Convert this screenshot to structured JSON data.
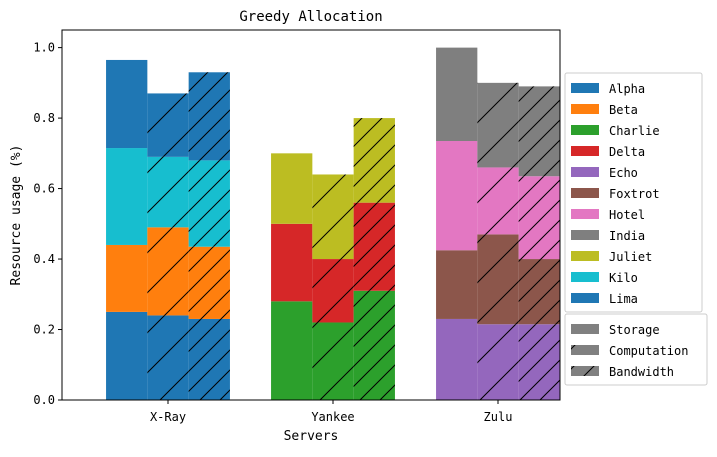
{
  "chart_data": {
    "type": "bar",
    "title": "Greedy Allocation",
    "xlabel": "Servers",
    "ylabel": "Resource usage (%)",
    "ylim": [
      0,
      1.05
    ],
    "yticks": [
      "0.0",
      "0.2",
      "0.4",
      "0.6",
      "0.8",
      "1.0"
    ],
    "categories": [
      "X-Ray",
      "Yankee",
      "Zulu"
    ],
    "resources": [
      "Storage",
      "Computation",
      "Bandwidth"
    ],
    "colors": {
      "Alpha": "#1f77b4",
      "Beta": "#ff7f0e",
      "Charlie": "#2ca02c",
      "Delta": "#d62728",
      "Echo": "#9467bd",
      "Foxtrot": "#8c564b",
      "Hotel": "#e377c2",
      "India": "#7f7f7f",
      "Juliet": "#bcbd22",
      "Kilo": "#17becf",
      "Lima": "#1f77b4"
    },
    "legend_series": [
      "Alpha",
      "Beta",
      "Charlie",
      "Delta",
      "Echo",
      "Foxtrot",
      "Hotel",
      "India",
      "Juliet",
      "Kilo",
      "Lima"
    ],
    "legend_series_placement": "center-right",
    "legend_resources": [
      "Storage",
      "Computation",
      "Bandwidth"
    ],
    "legend_resources_placement": "lower-right",
    "grid": false,
    "stacks": [
      {
        "category": "X-Ray",
        "bars": [
          {
            "resource": "Storage",
            "segments": [
              {
                "series": "Alpha",
                "value": 0.25
              },
              {
                "series": "Beta",
                "value": 0.19
              },
              {
                "series": "Kilo",
                "value": 0.275
              },
              {
                "series": "Lima",
                "value": 0.25
              }
            ]
          },
          {
            "resource": "Computation",
            "segments": [
              {
                "series": "Alpha",
                "value": 0.24
              },
              {
                "series": "Beta",
                "value": 0.25
              },
              {
                "series": "Kilo",
                "value": 0.2
              },
              {
                "series": "Lima",
                "value": 0.18
              }
            ]
          },
          {
            "resource": "Bandwidth",
            "segments": [
              {
                "series": "Alpha",
                "value": 0.23
              },
              {
                "series": "Beta",
                "value": 0.205
              },
              {
                "series": "Kilo",
                "value": 0.245
              },
              {
                "series": "Lima",
                "value": 0.25
              }
            ]
          }
        ]
      },
      {
        "category": "Yankee",
        "bars": [
          {
            "resource": "Storage",
            "segments": [
              {
                "series": "Charlie",
                "value": 0.28
              },
              {
                "series": "Delta",
                "value": 0.22
              },
              {
                "series": "Juliet",
                "value": 0.2
              }
            ]
          },
          {
            "resource": "Computation",
            "segments": [
              {
                "series": "Charlie",
                "value": 0.22
              },
              {
                "series": "Delta",
                "value": 0.18
              },
              {
                "series": "Juliet",
                "value": 0.24
              }
            ]
          },
          {
            "resource": "Bandwidth",
            "segments": [
              {
                "series": "Charlie",
                "value": 0.31
              },
              {
                "series": "Delta",
                "value": 0.25
              },
              {
                "series": "Juliet",
                "value": 0.24
              }
            ]
          }
        ]
      },
      {
        "category": "Zulu",
        "bars": [
          {
            "resource": "Storage",
            "segments": [
              {
                "series": "Echo",
                "value": 0.23
              },
              {
                "series": "Foxtrot",
                "value": 0.195
              },
              {
                "series": "Hotel",
                "value": 0.31
              },
              {
                "series": "India",
                "value": 0.265
              }
            ]
          },
          {
            "resource": "Computation",
            "segments": [
              {
                "series": "Echo",
                "value": 0.215
              },
              {
                "series": "Foxtrot",
                "value": 0.255
              },
              {
                "series": "Hotel",
                "value": 0.19
              },
              {
                "series": "India",
                "value": 0.24
              }
            ]
          },
          {
            "resource": "Bandwidth",
            "segments": [
              {
                "series": "Echo",
                "value": 0.215
              },
              {
                "series": "Foxtrot",
                "value": 0.185
              },
              {
                "series": "Hotel",
                "value": 0.235
              },
              {
                "series": "India",
                "value": 0.255
              }
            ]
          }
        ]
      }
    ]
  }
}
